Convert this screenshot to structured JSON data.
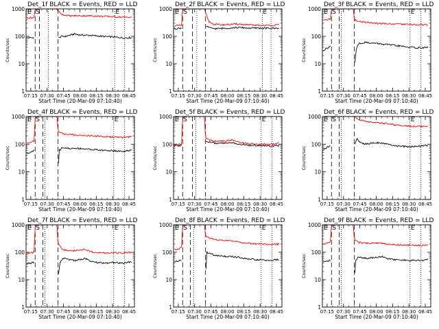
{
  "figure": {
    "ylabel": "Counts/sec",
    "xlabel": "Start Time (20-Mar-09 07:10:40)",
    "x_tick_labels": [
      "07:15",
      "07:30",
      "07:45",
      "08:00",
      "08:15",
      "08:30",
      "08:45"
    ],
    "y_tick_labels": [
      "1",
      "10",
      "100",
      "1000"
    ]
  },
  "colors": {
    "events": "#000000",
    "lld": "#ff0000",
    "axes": "#000000"
  },
  "chart_data": [
    {
      "type": "line",
      "title": "Det_1f BLACK = Events, RED = LLD",
      "markers": [
        "E",
        "S",
        "E"
      ],
      "xlim": [
        "07:10:40",
        "08:50:00"
      ],
      "ylim": [
        1,
        1000
      ],
      "yscale": "log",
      "dashed_lines": [
        "07:19",
        "07:23",
        "07:40"
      ],
      "dotted_lines": [
        "07:31",
        "08:32",
        "08:41"
      ],
      "series": [
        {
          "name": "Events",
          "color": "#000000",
          "x": [
            "07:11",
            "07:18",
            "07:19",
            "07:24",
            "07:39",
            "07:40",
            "07:42",
            "07:44",
            "07:47",
            "07:55",
            "08:00",
            "08:10",
            "08:20",
            "08:30",
            "08:40",
            "08:48"
          ],
          "y": [
            88,
            90,
            null,
            null,
            null,
            85,
            95,
            100,
            100,
            122,
            112,
            108,
            100,
            95,
            88,
            90
          ]
        },
        {
          "name": "LLD",
          "color": "#ff0000",
          "x": [
            "07:11",
            "07:18",
            "07:19",
            "07:20",
            "07:39",
            "07:40",
            "07:42",
            "07:44",
            "07:50",
            "08:00",
            "08:10",
            "08:20",
            "08:30",
            "08:40",
            "08:48"
          ],
          "y": [
            470,
            480,
            1000,
            1000,
            1000,
            850,
            700,
            620,
            560,
            560,
            560,
            540,
            520,
            500,
            500
          ]
        }
      ]
    },
    {
      "type": "line",
      "title": "Det_2f BLACK = Events, RED = LLD",
      "markers": [
        "E",
        "S",
        "E"
      ],
      "xlim": [
        "07:10:40",
        "08:50:00"
      ],
      "ylim": [
        1,
        1000
      ],
      "yscale": "log",
      "dashed_lines": [
        "07:19",
        "07:28",
        "07:40"
      ],
      "dotted_lines": [
        "07:32",
        "08:32",
        "08:40"
      ],
      "series": [
        {
          "name": "Events",
          "color": "#000000",
          "x": [
            "07:11",
            "07:18",
            "07:19",
            "07:39",
            "07:40",
            "07:44",
            "07:50",
            "08:00",
            "08:10",
            "08:20",
            "08:30",
            "08:40",
            "08:48"
          ],
          "y": [
            190,
            200,
            null,
            null,
            250,
            200,
            190,
            200,
            210,
            200,
            200,
            195,
            200
          ]
        },
        {
          "name": "LLD",
          "color": "#ff0000",
          "x": [
            "07:11",
            "07:18",
            "07:19",
            "07:28",
            "07:39",
            "07:40",
            "07:43",
            "07:47",
            "07:55",
            "08:00",
            "08:10",
            "08:20",
            "08:30",
            "08:40",
            "08:48"
          ],
          "y": [
            240,
            250,
            1000,
            1000,
            1000,
            700,
            350,
            280,
            260,
            270,
            280,
            260,
            250,
            250,
            260
          ]
        }
      ]
    },
    {
      "type": "line",
      "title": "Det_3f BLACK = Events, RED = LLD",
      "markers": [
        "E",
        "S",
        "E"
      ],
      "xlim": [
        "07:10:40",
        "08:50:00"
      ],
      "ylim": [
        1,
        1000
      ],
      "yscale": "log",
      "dashed_lines": [
        "07:19",
        "07:26",
        "07:40"
      ],
      "dotted_lines": [
        "07:28",
        "08:31",
        "08:41"
      ],
      "series": [
        {
          "name": "Events",
          "color": "#000000",
          "x": [
            "07:11",
            "07:18",
            "07:19",
            "07:39",
            "07:40",
            "07:42",
            "07:44",
            "07:50",
            "08:00",
            "08:10",
            "08:20",
            "08:30",
            "08:40",
            "08:48"
          ],
          "y": [
            30,
            45,
            null,
            null,
            8,
            40,
            55,
            60,
            55,
            50,
            45,
            40,
            38,
            40
          ]
        },
        {
          "name": "LLD",
          "color": "#ff0000",
          "x": [
            "07:11",
            "07:18",
            "07:19",
            "07:39",
            "07:40",
            "07:45",
            "07:55",
            "08:00",
            "08:10",
            "08:20",
            "08:30",
            "08:40",
            "08:48"
          ],
          "y": [
            400,
            420,
            1000,
            1000,
            400,
            340,
            320,
            300,
            290,
            280,
            270,
            260,
            270
          ]
        }
      ]
    },
    {
      "type": "line",
      "title": "Det_4f BLACK = Events, RED = LLD",
      "markers": [
        "E",
        "S",
        "E"
      ],
      "xlim": [
        "07:10:40",
        "08:50:00"
      ],
      "ylim": [
        1,
        1000
      ],
      "yscale": "log",
      "dashed_lines": [
        "07:19",
        "07:26",
        "07:40"
      ],
      "dotted_lines": [
        "07:28",
        "08:31",
        "08:41"
      ],
      "series": [
        {
          "name": "Events",
          "color": "#000000",
          "x": [
            "07:11",
            "07:18",
            "07:19",
            "07:39",
            "07:40",
            "07:41",
            "07:44",
            "07:50",
            "08:00",
            "08:10",
            "08:20",
            "08:30",
            "08:40",
            "08:48"
          ],
          "y": [
            45,
            60,
            null,
            null,
            8,
            60,
            75,
            70,
            70,
            65,
            60,
            58,
            55,
            60
          ]
        },
        {
          "name": "LLD",
          "color": "#ff0000",
          "x": [
            "07:11",
            "07:18",
            "07:19",
            "07:39",
            "07:40",
            "07:44",
            "07:50",
            "08:00",
            "08:10",
            "08:20",
            "08:30",
            "08:40",
            "08:48"
          ],
          "y": [
            110,
            130,
            1000,
            1000,
            300,
            240,
            220,
            210,
            200,
            190,
            180,
            175,
            190
          ]
        }
      ]
    },
    {
      "type": "line",
      "title": "Det_5f BLACK = Events, RED = LLD",
      "markers": [
        "E",
        "S",
        "E"
      ],
      "xlim": [
        "07:10:40",
        "08:50:00"
      ],
      "ylim": [
        1,
        1000
      ],
      "yscale": "log",
      "dashed_lines": [
        "07:19",
        "07:28",
        "07:40"
      ],
      "dotted_lines": [
        "07:31",
        "08:31",
        "08:41"
      ],
      "series": [
        {
          "name": "Events",
          "color": "#000000",
          "x": [
            "07:11",
            "07:18",
            "07:19",
            "07:39",
            "07:40",
            "07:44",
            "07:50",
            "08:00",
            "08:05",
            "08:10",
            "08:20",
            "08:30",
            "08:40",
            "08:48"
          ],
          "y": [
            85,
            90,
            null,
            null,
            130,
            120,
            105,
            110,
            115,
            100,
            90,
            90,
            85,
            90
          ]
        },
        {
          "name": "LLD",
          "color": "#ff0000",
          "x": [
            "07:11",
            "07:18",
            "07:19",
            "07:39",
            "07:40",
            "07:44",
            "07:50",
            "08:00",
            "08:05",
            "08:10",
            "08:20",
            "08:30",
            "08:40",
            "08:48"
          ],
          "y": [
            95,
            100,
            1000,
            1000,
            170,
            140,
            125,
            135,
            140,
            120,
            105,
            100,
            98,
            110
          ]
        }
      ]
    },
    {
      "type": "line",
      "title": "Det_6f BLACK = Events, RED = LLD",
      "markers": [
        "E",
        "S",
        "E"
      ],
      "xlim": [
        "07:10:40",
        "08:50:00"
      ],
      "ylim": [
        1,
        1000
      ],
      "yscale": "log",
      "dashed_lines": [
        "07:19",
        "07:26",
        "07:40"
      ],
      "dotted_lines": [
        "07:28",
        "08:31",
        "08:41"
      ],
      "series": [
        {
          "name": "Events",
          "color": "#000000",
          "x": [
            "07:11",
            "07:18",
            "07:19",
            "07:39",
            "07:40",
            "07:42",
            "07:45",
            "07:50",
            "08:00",
            "08:10",
            "08:20",
            "08:30",
            "08:40",
            "08:48"
          ],
          "y": [
            60,
            90,
            null,
            null,
            90,
            160,
            120,
            100,
            115,
            100,
            85,
            80,
            85,
            90
          ]
        },
        {
          "name": "LLD",
          "color": "#ff0000",
          "x": [
            "07:11",
            "07:18",
            "07:19",
            "07:39",
            "07:40",
            "07:44",
            "07:50",
            "08:00",
            "08:10",
            "08:20",
            "08:30",
            "08:40",
            "08:48"
          ],
          "y": [
            1000,
            1000,
            1000,
            1000,
            1000,
            800,
            650,
            600,
            550,
            480,
            450,
            440,
            440
          ]
        }
      ]
    },
    {
      "type": "line",
      "title": "Det_7f BLACK = Events, RED = LLD",
      "markers": [
        "E",
        "S",
        "E"
      ],
      "xlim": [
        "07:10:40",
        "08:50:00"
      ],
      "ylim": [
        1,
        1000
      ],
      "yscale": "log",
      "dashed_lines": [
        "07:19",
        "07:26",
        "07:40"
      ],
      "dotted_lines": [
        "07:28",
        "08:31",
        "08:41"
      ],
      "series": [
        {
          "name": "Events",
          "color": "#000000",
          "x": [
            "07:11",
            "07:18",
            "07:19",
            "07:39",
            "07:40",
            "07:42",
            "07:45",
            "07:55",
            "08:00",
            "08:05",
            "08:10",
            "08:20",
            "08:30",
            "08:40",
            "08:48"
          ],
          "y": [
            38,
            42,
            null,
            null,
            12,
            45,
            60,
            50,
            55,
            60,
            45,
            40,
            42,
            40,
            45
          ]
        },
        {
          "name": "LLD",
          "color": "#ff0000",
          "x": [
            "07:11",
            "07:18",
            "07:19",
            "07:39",
            "07:40",
            "07:44",
            "07:50",
            "08:00",
            "08:05",
            "08:10",
            "08:20",
            "08:30",
            "08:40",
            "08:48"
          ],
          "y": [
            90,
            100,
            1000,
            1000,
            200,
            130,
            110,
            120,
            130,
            105,
            95,
            95,
            95,
            100
          ]
        }
      ]
    },
    {
      "type": "line",
      "title": "Det_8f BLACK = Events, RED = LLD",
      "markers": [
        "E",
        "S",
        "E"
      ],
      "xlim": [
        "07:10:40",
        "08:50:00"
      ],
      "ylim": [
        1,
        1000
      ],
      "yscale": "log",
      "dashed_lines": [
        "07:19",
        "07:26",
        "07:40"
      ],
      "dotted_lines": [
        "07:29",
        "08:31",
        "08:41"
      ],
      "series": [
        {
          "name": "Events",
          "color": "#000000",
          "x": [
            "07:11",
            "07:18",
            "07:19",
            "07:39",
            "07:40",
            "07:41",
            "07:44",
            "07:50",
            "08:00",
            "08:10",
            "08:20",
            "08:30",
            "08:40",
            "08:48"
          ],
          "y": [
            45,
            50,
            null,
            null,
            8,
            100,
            90,
            75,
            70,
            65,
            55,
            52,
            50,
            55
          ]
        },
        {
          "name": "LLD",
          "color": "#ff0000",
          "x": [
            "07:11",
            "07:18",
            "07:19",
            "07:39",
            "07:40",
            "07:44",
            "07:50",
            "08:00",
            "08:10",
            "08:20",
            "08:30",
            "08:40",
            "08:48"
          ],
          "y": [
            120,
            150,
            1000,
            1000,
            400,
            320,
            280,
            260,
            240,
            210,
            200,
            190,
            200
          ]
        }
      ]
    },
    {
      "type": "line",
      "title": "Det_9f BLACK = Events, RED = LLD",
      "markers": [
        "E",
        "S",
        "E"
      ],
      "xlim": [
        "07:10:40",
        "08:50:00"
      ],
      "ylim": [
        1,
        1000
      ],
      "yscale": "log",
      "dashed_lines": [
        "07:19",
        "07:26",
        "07:40"
      ],
      "dotted_lines": [
        "07:28",
        "08:31",
        "08:41"
      ],
      "series": [
        {
          "name": "Events",
          "color": "#000000",
          "x": [
            "07:11",
            "07:18",
            "07:19",
            "07:39",
            "07:40",
            "07:41",
            "07:44",
            "07:50",
            "08:00",
            "08:05",
            "08:10",
            "08:20",
            "08:30",
            "08:40",
            "08:48"
          ],
          "y": [
            45,
            50,
            null,
            null,
            8,
            50,
            70,
            60,
            65,
            70,
            58,
            52,
            50,
            50,
            55
          ]
        },
        {
          "name": "LLD",
          "color": "#ff0000",
          "x": [
            "07:11",
            "07:18",
            "07:19",
            "07:39",
            "07:40",
            "07:44",
            "07:50",
            "08:00",
            "08:10",
            "08:20",
            "08:30",
            "08:40",
            "08:48"
          ],
          "y": [
            200,
            240,
            1000,
            1000,
            300,
            230,
            210,
            220,
            200,
            185,
            180,
            175,
            180
          ]
        }
      ]
    }
  ]
}
